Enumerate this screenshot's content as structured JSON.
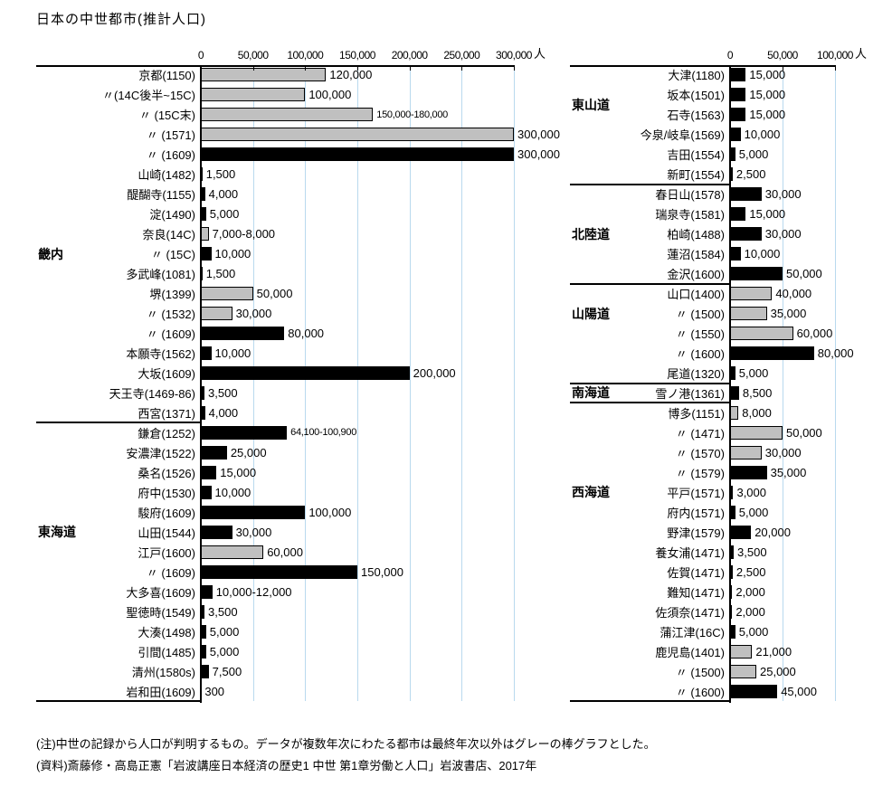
{
  "title": "日本の中世都市(推計人口)",
  "notes": {
    "line1": "(注)中世の記録から人口が判明するもの。データが複数年次にわたる都市は最終年次以外はグレーの棒グラフとした。",
    "line2": "(資料)斎藤修・高島正憲「岩波講座日本経済の歴史1 中世 第1章労働と人口」岩波書店、2017年"
  },
  "styles": {
    "background": "#ffffff",
    "text": "#000000",
    "bar_black": "#000000",
    "bar_gray": "#c0c0c0",
    "bar_border": "#000000",
    "gridline": "#b9d9ee"
  },
  "chart_data": [
    {
      "type": "bar",
      "orientation": "horizontal",
      "unit": "人",
      "axis": {
        "max": 300000,
        "ticks": [
          0,
          50000,
          100000,
          150000,
          200000,
          250000,
          300000
        ],
        "tick_labels": [
          "0",
          "50,000",
          "100,000",
          "150,000",
          "200,000",
          "250,000",
          "300,000"
        ],
        "grid": true
      },
      "groups": [
        {
          "name": "畿内",
          "label_anchor": 9.5,
          "rows": [
            {
              "label": "京都(1150)",
              "value": "120,000",
              "bar": 120000,
              "color": "gray"
            },
            {
              "label": "〃(14C後半~15C)",
              "value": "100,000",
              "bar": 100000,
              "color": "gray"
            },
            {
              "label": "〃 (15C末)",
              "value": "150,000-180,000",
              "bar": 165000,
              "color": "gray",
              "small": true
            },
            {
              "label": "〃 (1571)",
              "value": "300,000",
              "bar": 300000,
              "color": "gray"
            },
            {
              "label": "〃 (1609)",
              "value": "300,000",
              "bar": 300000,
              "color": "black"
            },
            {
              "label": "山崎(1482)",
              "value": "1,500",
              "bar": 1500,
              "color": "black"
            },
            {
              "label": "醍醐寺(1155)",
              "value": "4,000",
              "bar": 4000,
              "color": "black"
            },
            {
              "label": "淀(1490)",
              "value": "5,000",
              "bar": 5000,
              "color": "black"
            },
            {
              "label": "奈良(14C)",
              "value": "7,000-8,000",
              "bar": 7500,
              "color": "gray"
            },
            {
              "label": "〃 (15C)",
              "value": "10,000",
              "bar": 10000,
              "color": "black"
            },
            {
              "label": "多武峰(1081)",
              "value": "1,500",
              "bar": 1500,
              "color": "black"
            },
            {
              "label": "堺(1399)",
              "value": "50,000",
              "bar": 50000,
              "color": "gray"
            },
            {
              "label": "〃 (1532)",
              "value": "30,000",
              "bar": 30000,
              "color": "gray"
            },
            {
              "label": "〃 (1609)",
              "value": "80,000",
              "bar": 80000,
              "color": "black"
            },
            {
              "label": "本願寺(1562)",
              "value": "10,000",
              "bar": 10000,
              "color": "black"
            },
            {
              "label": "大坂(1609)",
              "value": "200,000",
              "bar": 200000,
              "color": "black"
            },
            {
              "label": "天王寺(1469-86)",
              "value": "3,500",
              "bar": 3500,
              "color": "black"
            },
            {
              "label": "西宮(1371)",
              "value": "4,000",
              "bar": 4000,
              "color": "black"
            }
          ]
        },
        {
          "name": "東海道",
          "label_anchor": 23.5,
          "rows": [
            {
              "label": "鎌倉(1252)",
              "value": "64,100-100,900",
              "bar": 82500,
              "color": "black",
              "small": true
            },
            {
              "label": "安濃津(1522)",
              "value": "25,000",
              "bar": 25000,
              "color": "black"
            },
            {
              "label": "桑名(1526)",
              "value": "15,000",
              "bar": 15000,
              "color": "black"
            },
            {
              "label": "府中(1530)",
              "value": "10,000",
              "bar": 10000,
              "color": "black"
            },
            {
              "label": "駿府(1609)",
              "value": "100,000",
              "bar": 100000,
              "color": "black"
            },
            {
              "label": "山田(1544)",
              "value": "30,000",
              "bar": 30000,
              "color": "black"
            },
            {
              "label": "江戸(1600)",
              "value": "60,000",
              "bar": 60000,
              "color": "gray"
            },
            {
              "label": "〃 (1609)",
              "value": "150,000",
              "bar": 150000,
              "color": "black"
            },
            {
              "label": "大多喜(1609)",
              "value": "10,000-12,000",
              "bar": 11000,
              "color": "black"
            },
            {
              "label": "聖徳時(1549)",
              "value": "3,500",
              "bar": 3500,
              "color": "black"
            },
            {
              "label": "大湊(1498)",
              "value": "5,000",
              "bar": 5000,
              "color": "black"
            },
            {
              "label": "引間(1485)",
              "value": "5,000",
              "bar": 5000,
              "color": "black"
            },
            {
              "label": "清州(1580s)",
              "value": "7,500",
              "bar": 7500,
              "color": "black"
            },
            {
              "label": "岩和田(1609)",
              "value": "300",
              "bar": 300,
              "color": "black"
            }
          ]
        }
      ]
    },
    {
      "type": "bar",
      "orientation": "horizontal",
      "unit": "人",
      "axis": {
        "max": 100000,
        "ticks": [
          0,
          50000,
          100000
        ],
        "tick_labels": [
          "0",
          "50,000",
          "100,000"
        ],
        "grid": true
      },
      "groups": [
        {
          "name": "東山道",
          "label_anchor": 2.0,
          "rows": [
            {
              "label": "大津(1180)",
              "value": "15,000",
              "bar": 15000,
              "color": "black"
            },
            {
              "label": "坂本(1501)",
              "value": "15,000",
              "bar": 15000,
              "color": "black"
            },
            {
              "label": "石寺(1563)",
              "value": "15,000",
              "bar": 15000,
              "color": "black"
            },
            {
              "label": "今泉/岐阜(1569)",
              "value": "10,000",
              "bar": 10000,
              "color": "black"
            },
            {
              "label": "吉田(1554)",
              "value": "5,000",
              "bar": 5000,
              "color": "black"
            },
            {
              "label": "新町(1554)",
              "value": "2,500",
              "bar": 2500,
              "color": "black"
            }
          ]
        },
        {
          "name": "北陸道",
          "label_anchor": 8.5,
          "rows": [
            {
              "label": "春日山(1578)",
              "value": "30,000",
              "bar": 30000,
              "color": "black"
            },
            {
              "label": "瑞泉寺(1581)",
              "value": "15,000",
              "bar": 15000,
              "color": "black"
            },
            {
              "label": "柏崎(1488)",
              "value": "30,000",
              "bar": 30000,
              "color": "black"
            },
            {
              "label": "蓮沼(1584)",
              "value": "10,000",
              "bar": 10000,
              "color": "black"
            },
            {
              "label": "金沢(1600)",
              "value": "50,000",
              "bar": 50000,
              "color": "black"
            }
          ]
        },
        {
          "name": "山陽道",
          "label_anchor": 12.5,
          "rows": [
            {
              "label": "山口(1400)",
              "value": "40,000",
              "bar": 40000,
              "color": "gray"
            },
            {
              "label": "〃 (1500)",
              "value": "35,000",
              "bar": 35000,
              "color": "gray"
            },
            {
              "label": "〃 (1550)",
              "value": "60,000",
              "bar": 60000,
              "color": "gray"
            },
            {
              "label": "〃 (1600)",
              "value": "80,000",
              "bar": 80000,
              "color": "black"
            },
            {
              "label": "尾道(1320)",
              "value": "5,000",
              "bar": 5000,
              "color": "black"
            }
          ]
        },
        {
          "name": "南海道",
          "label_anchor": 16.5,
          "rows": [
            {
              "label": "雪ノ港(1361)",
              "value": "8,500",
              "bar": 8500,
              "color": "black"
            }
          ]
        },
        {
          "name": "西海道",
          "label_anchor": 21.5,
          "rows": [
            {
              "label": "博多(1151)",
              "value": "8,000",
              "bar": 8000,
              "color": "gray"
            },
            {
              "label": "〃 (1471)",
              "value": "50,000",
              "bar": 50000,
              "color": "gray"
            },
            {
              "label": "〃 (1570)",
              "value": "30,000",
              "bar": 30000,
              "color": "gray"
            },
            {
              "label": "〃 (1579)",
              "value": "35,000",
              "bar": 35000,
              "color": "black"
            },
            {
              "label": "平戸(1571)",
              "value": "3,000",
              "bar": 3000,
              "color": "black"
            },
            {
              "label": "府内(1571)",
              "value": "5,000",
              "bar": 5000,
              "color": "black"
            },
            {
              "label": "野津(1579)",
              "value": "20,000",
              "bar": 20000,
              "color": "black"
            },
            {
              "label": "養女浦(1471)",
              "value": "3,500",
              "bar": 3500,
              "color": "black"
            },
            {
              "label": "佐賀(1471)",
              "value": "2,500",
              "bar": 2500,
              "color": "black"
            },
            {
              "label": "難知(1471)",
              "value": "2,000",
              "bar": 2000,
              "color": "black"
            },
            {
              "label": "佐須奈(1471)",
              "value": "2,000",
              "bar": 2000,
              "color": "black"
            },
            {
              "label": "蒲江津(16C)",
              "value": "5,000",
              "bar": 5000,
              "color": "black"
            },
            {
              "label": "鹿児島(1401)",
              "value": "21,000",
              "bar": 21000,
              "color": "gray"
            },
            {
              "label": "〃 (1500)",
              "value": "25,000",
              "bar": 25000,
              "color": "gray"
            },
            {
              "label": "〃 (1600)",
              "value": "45,000",
              "bar": 45000,
              "color": "black"
            }
          ]
        }
      ]
    }
  ]
}
